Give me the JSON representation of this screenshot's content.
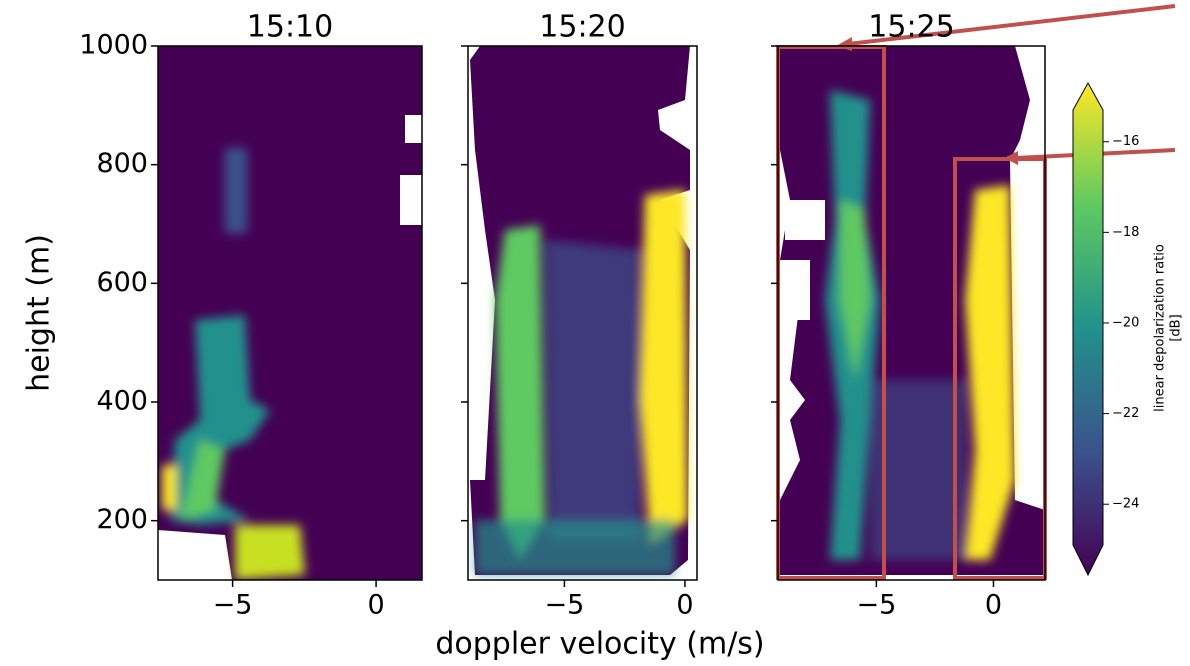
{
  "chart_data": [
    {
      "type": "heatmap",
      "title": "15:10",
      "ylabel": "height (m)",
      "xlim": [
        -7.6,
        1.6
      ],
      "xticks": [
        {
          "value": -5,
          "label": "−5"
        },
        0
      ],
      "ylim": [
        100,
        1000
      ],
      "yticks": [
        200,
        400,
        600,
        800,
        1000
      ]
    },
    {
      "type": "heatmap",
      "title": "15:20",
      "xlabel": "doppler velocity (m/s)",
      "xlim": [
        -9.0,
        0.5
      ],
      "xticks": [
        {
          "value": -5,
          "label": "−5"
        },
        0
      ],
      "ylim": [
        100,
        1000
      ],
      "yticks": [
        200,
        400,
        600,
        800,
        1000
      ]
    },
    {
      "type": "heatmap",
      "title": "15:25",
      "xlim": [
        -9.2,
        2.2
      ],
      "xticks": [
        {
          "value": -5,
          "label": "−5"
        },
        0
      ],
      "ylim": [
        100,
        1000
      ],
      "yticks": [
        200,
        400,
        600,
        800,
        1000
      ]
    }
  ],
  "colorbar": {
    "label": [
      "linear depolarization ratio",
      "[dB]"
    ],
    "lim": [
      -24.9,
      -15.3
    ],
    "ticks": [
      {
        "value": -16,
        "label": "−16"
      },
      {
        "value": -18,
        "label": "−18"
      },
      {
        "value": -20,
        "label": "−20"
      },
      {
        "value": -22,
        "label": "−22"
      },
      {
        "value": -24,
        "label": "−24"
      }
    ]
  }
}
